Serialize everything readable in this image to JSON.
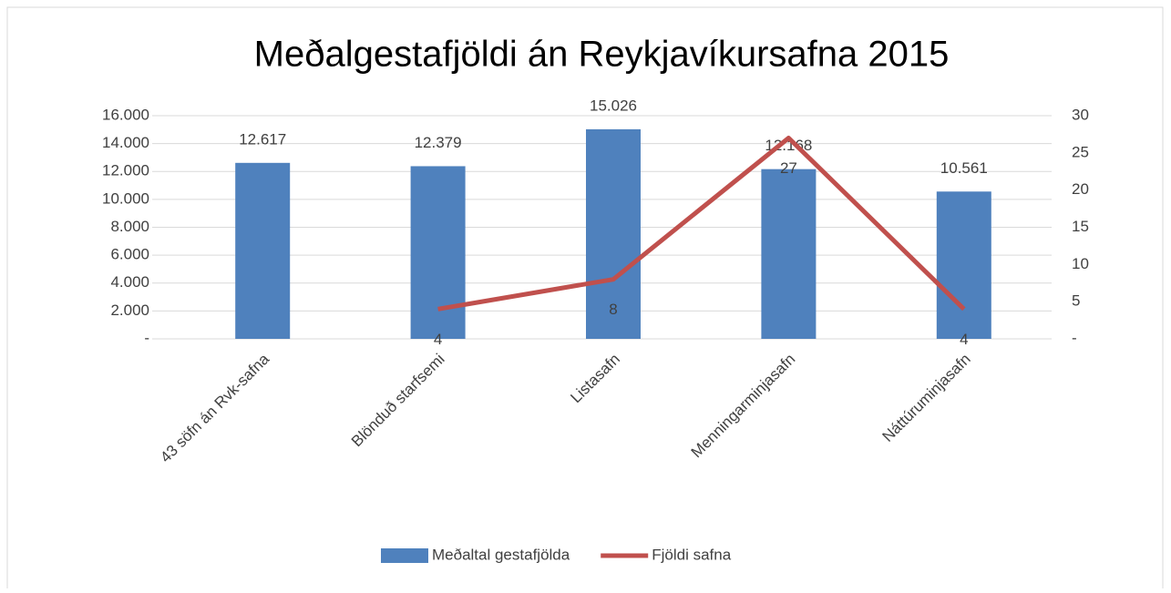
{
  "chart_data": {
    "type": "bar",
    "title": "Meðalgestafjöldi án Reykjavíkursafna 2015",
    "categories": [
      "43 söfn án Rvk-safna",
      "Blönduð starfsemi",
      "Listasafn",
      "Menningarminjasafn",
      "Náttúruminjasafn"
    ],
    "series": [
      {
        "name": "Meðaltal gestafjölda",
        "type": "bar",
        "color": "#4f81bd",
        "values": [
          12617,
          12379,
          15026,
          12168,
          10561
        ],
        "value_labels": [
          "12.617",
          "12.379",
          "15.026",
          "12.168",
          "10.561"
        ]
      },
      {
        "name": "Fjöldi safna",
        "type": "line",
        "axis": "y2",
        "color": "#c0504d",
        "values": [
          null,
          4,
          8,
          27,
          4
        ]
      }
    ],
    "ylim": [
      0,
      16000
    ],
    "yticks": [
      {
        "value": 0,
        "label": "-"
      },
      {
        "value": 2000,
        "label": "2.000"
      },
      {
        "value": 4000,
        "label": "4.000"
      },
      {
        "value": 6000,
        "label": "6.000"
      },
      {
        "value": 8000,
        "label": "8.000"
      },
      {
        "value": 10000,
        "label": "10.000"
      },
      {
        "value": 12000,
        "label": "12.000"
      },
      {
        "value": 14000,
        "label": "14.000"
      },
      {
        "value": 16000,
        "label": "16.000"
      }
    ],
    "y2lim": [
      0,
      30
    ],
    "y2ticks": [
      {
        "value": 0,
        "label": "-"
      },
      5,
      10,
      15,
      20,
      25,
      30
    ],
    "grid": true,
    "legend": "bottom"
  }
}
